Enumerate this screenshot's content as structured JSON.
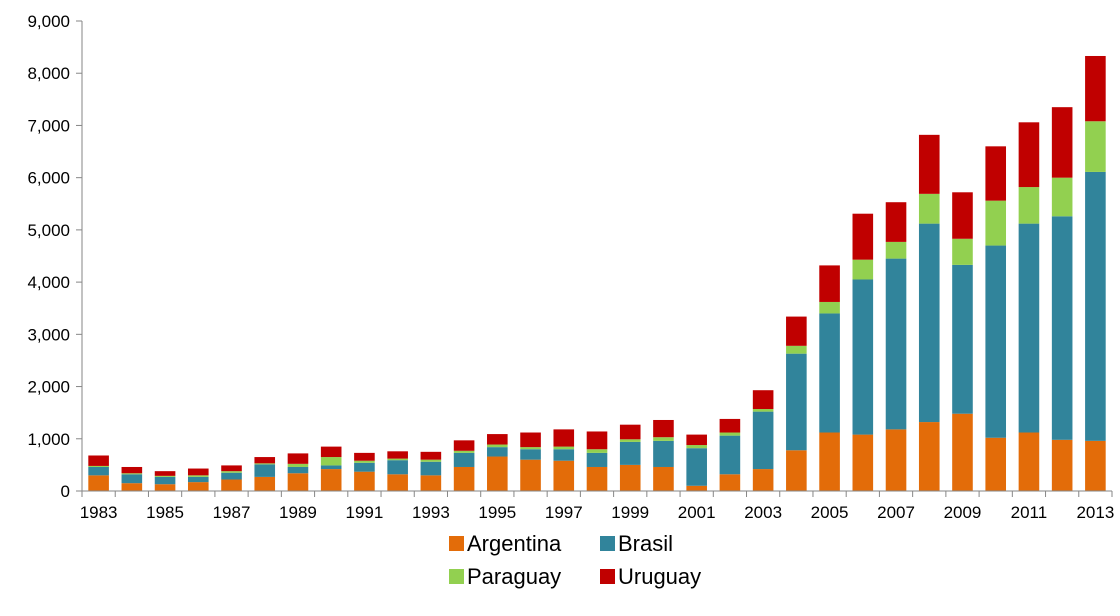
{
  "chart_data": {
    "type": "bar",
    "stacked": true,
    "title": "",
    "xlabel": "",
    "ylabel": "",
    "ylim": [
      0,
      9000
    ],
    "yticks": [
      0,
      1000,
      2000,
      3000,
      4000,
      5000,
      6000,
      7000,
      8000,
      9000
    ],
    "ytick_labels": [
      "0",
      "1,000",
      "2,000",
      "3,000",
      "4,000",
      "5,000",
      "6,000",
      "7,000",
      "8,000",
      "9,000"
    ],
    "categories": [
      "1983",
      "1984",
      "1985",
      "1986",
      "1987",
      "1988",
      "1989",
      "1990",
      "1991",
      "1992",
      "1993",
      "1994",
      "1995",
      "1996",
      "1997",
      "1998",
      "1999",
      "2000",
      "2001",
      "2002",
      "2003",
      "2004",
      "2005",
      "2006",
      "2007",
      "2008",
      "2009",
      "2010",
      "2011",
      "2012",
      "2013"
    ],
    "xtick_labels": [
      "1983",
      "1985",
      "1987",
      "1989",
      "1991",
      "1993",
      "1995",
      "1997",
      "1999",
      "2001",
      "2003",
      "2005",
      "2007",
      "2009",
      "2011",
      "2013"
    ],
    "grid": false,
    "legend_position": "bottom",
    "series": [
      {
        "name": "Argentina",
        "color": "#E36C09",
        "values": [
          300,
          150,
          130,
          170,
          220,
          270,
          340,
          420,
          370,
          320,
          300,
          460,
          660,
          600,
          580,
          460,
          500,
          460,
          100,
          320,
          420,
          780,
          1120,
          1080,
          1180,
          1320,
          1480,
          1020,
          1120,
          980,
          960
        ]
      },
      {
        "name": "Brasil",
        "color": "#31849B",
        "values": [
          160,
          170,
          140,
          100,
          130,
          240,
          120,
          70,
          170,
          270,
          260,
          270,
          180,
          200,
          220,
          270,
          440,
          500,
          720,
          740,
          1100,
          1850,
          2280,
          2970,
          3270,
          3800,
          2850,
          3680,
          4000,
          4280,
          5150
        ]
      },
      {
        "name": "Paraguay",
        "color": "#92D050",
        "values": [
          20,
          20,
          20,
          30,
          30,
          20,
          60,
          160,
          40,
          30,
          40,
          40,
          50,
          40,
          50,
          70,
          50,
          70,
          60,
          60,
          50,
          150,
          220,
          380,
          320,
          570,
          500,
          860,
          700,
          740,
          970
        ]
      },
      {
        "name": "Uruguay",
        "color": "#C00000",
        "values": [
          200,
          120,
          90,
          130,
          110,
          120,
          200,
          200,
          150,
          140,
          150,
          200,
          200,
          280,
          330,
          340,
          280,
          330,
          200,
          260,
          360,
          560,
          700,
          880,
          760,
          1130,
          890,
          1040,
          1240,
          1350,
          1250
        ]
      }
    ]
  }
}
